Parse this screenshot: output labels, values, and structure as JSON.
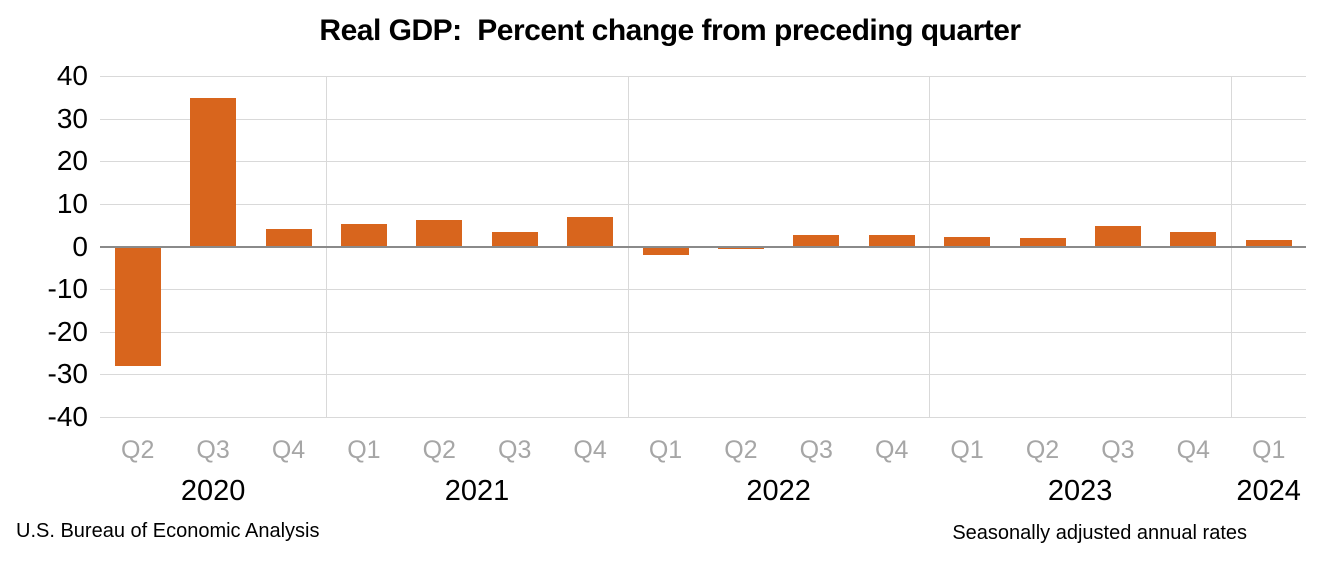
{
  "chart_data": {
    "type": "bar",
    "title": "Real GDP:  Percent change from preceding quarter",
    "categories": [
      "2020 Q2",
      "2020 Q3",
      "2020 Q4",
      "2021 Q1",
      "2021 Q2",
      "2021 Q3",
      "2021 Q4",
      "2022 Q1",
      "2022 Q2",
      "2022 Q3",
      "2022 Q4",
      "2023 Q1",
      "2023 Q2",
      "2023 Q3",
      "2023 Q4",
      "2024 Q1"
    ],
    "quarter_labels": [
      "Q2",
      "Q3",
      "Q4",
      "Q1",
      "Q2",
      "Q3",
      "Q4",
      "Q1",
      "Q2",
      "Q3",
      "Q4",
      "Q1",
      "Q2",
      "Q3",
      "Q4",
      "Q1"
    ],
    "years": [
      {
        "label": "2020",
        "count": 3
      },
      {
        "label": "2021",
        "count": 4
      },
      {
        "label": "2022",
        "count": 4
      },
      {
        "label": "2023",
        "count": 4
      },
      {
        "label": "2024",
        "count": 1
      }
    ],
    "values": [
      -28.0,
      34.8,
      4.2,
      5.2,
      6.2,
      3.3,
      7.0,
      -2.0,
      -0.6,
      2.7,
      2.6,
      2.2,
      2.1,
      4.9,
      3.4,
      1.6
    ],
    "ylim": [
      -40,
      40
    ],
    "yticks": [
      40,
      30,
      20,
      10,
      0,
      -10,
      -20,
      -30,
      -40
    ],
    "grid": true,
    "legend": "none",
    "bar_color": "#D8651D",
    "gridline_color": "#D9D9D9",
    "zero_line_color": "#8A8A8A",
    "quarter_label_color": "#A6A6A6",
    "year_label_color": "#000000"
  },
  "footer": {
    "left": "U.S. Bureau of Economic Analysis",
    "right": "Seasonally adjusted annual rates"
  }
}
